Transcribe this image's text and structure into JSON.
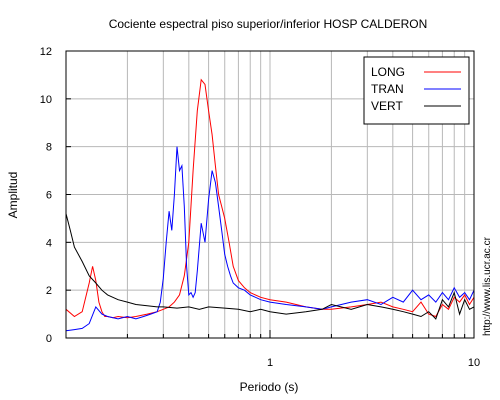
{
  "chart_data": {
    "type": "line",
    "title": "Cociente espectral piso superior/inferior  HOSP CALDERON",
    "xlabel": "Periodo (s)",
    "ylabel": "Amplitud",
    "xscale": "log",
    "xlim": [
      0.1,
      10
    ],
    "ylim": [
      0,
      12
    ],
    "yticks": [
      0,
      2,
      4,
      6,
      8,
      10,
      12
    ],
    "xtick_labels": [
      "1",
      "10"
    ],
    "grid": true,
    "legend_position": "top-right",
    "source_note": "http://www.lis.ucr.ac.cr",
    "series": [
      {
        "name": "LONG",
        "color": "#ff0000",
        "x": [
          0.1,
          0.11,
          0.12,
          0.13,
          0.135,
          0.14,
          0.145,
          0.15,
          0.155,
          0.16,
          0.17,
          0.18,
          0.2,
          0.22,
          0.25,
          0.28,
          0.3,
          0.32,
          0.34,
          0.36,
          0.38,
          0.4,
          0.42,
          0.44,
          0.46,
          0.48,
          0.5,
          0.52,
          0.54,
          0.56,
          0.58,
          0.6,
          0.63,
          0.66,
          0.7,
          0.75,
          0.8,
          0.9,
          1.0,
          1.2,
          1.5,
          1.8,
          2.0,
          2.5,
          3.0,
          3.5,
          4.0,
          4.5,
          5.0,
          5.5,
          6.0,
          6.5,
          7.0,
          7.5,
          8.0,
          8.5,
          9.0,
          9.5,
          10.0
        ],
        "y": [
          1.2,
          0.9,
          1.1,
          2.3,
          3.0,
          2.4,
          1.5,
          1.1,
          0.9,
          0.9,
          0.85,
          0.9,
          0.85,
          0.9,
          1.0,
          1.1,
          1.2,
          1.3,
          1.5,
          1.8,
          2.6,
          4.0,
          7.0,
          9.5,
          10.8,
          10.6,
          9.5,
          8.5,
          7.2,
          6.0,
          5.5,
          5.0,
          4.0,
          3.0,
          2.4,
          2.1,
          1.9,
          1.7,
          1.6,
          1.5,
          1.3,
          1.2,
          1.2,
          1.3,
          1.4,
          1.5,
          1.3,
          1.2,
          1.1,
          1.5,
          1.0,
          0.9,
          1.4,
          1.2,
          1.7,
          1.5,
          1.8,
          1.4,
          1.7
        ]
      },
      {
        "name": "TRAN",
        "color": "#0000ff",
        "x": [
          0.1,
          0.11,
          0.12,
          0.13,
          0.14,
          0.15,
          0.16,
          0.18,
          0.2,
          0.22,
          0.24,
          0.26,
          0.28,
          0.29,
          0.3,
          0.31,
          0.32,
          0.33,
          0.34,
          0.35,
          0.36,
          0.37,
          0.38,
          0.39,
          0.4,
          0.41,
          0.42,
          0.43,
          0.44,
          0.46,
          0.48,
          0.5,
          0.52,
          0.54,
          0.56,
          0.58,
          0.6,
          0.62,
          0.64,
          0.66,
          0.7,
          0.75,
          0.8,
          0.9,
          1.0,
          1.2,
          1.5,
          1.8,
          2.0,
          2.5,
          3.0,
          3.5,
          4.0,
          4.5,
          5.0,
          5.5,
          6.0,
          6.5,
          7.0,
          7.5,
          8.0,
          8.5,
          9.0,
          9.5,
          10.0
        ],
        "y": [
          0.3,
          0.35,
          0.4,
          0.6,
          1.3,
          1.0,
          0.9,
          0.8,
          0.9,
          0.8,
          0.9,
          1.0,
          1.1,
          1.5,
          2.5,
          4.0,
          5.3,
          4.5,
          6.0,
          8.0,
          7.0,
          7.2,
          5.5,
          3.0,
          1.8,
          1.9,
          1.7,
          1.9,
          2.8,
          4.8,
          4.0,
          5.8,
          7.0,
          6.5,
          5.5,
          4.5,
          3.5,
          3.0,
          2.6,
          2.3,
          2.1,
          2.0,
          1.8,
          1.6,
          1.5,
          1.4,
          1.3,
          1.2,
          1.3,
          1.5,
          1.6,
          1.4,
          1.7,
          1.5,
          2.0,
          1.6,
          1.8,
          1.5,
          1.9,
          1.6,
          2.1,
          1.7,
          1.9,
          1.6,
          2.0
        ]
      },
      {
        "name": "VERT",
        "color": "#000000",
        "x": [
          0.1,
          0.105,
          0.11,
          0.12,
          0.13,
          0.14,
          0.15,
          0.16,
          0.18,
          0.2,
          0.22,
          0.25,
          0.28,
          0.3,
          0.35,
          0.4,
          0.45,
          0.5,
          0.6,
          0.7,
          0.8,
          0.9,
          1.0,
          1.2,
          1.5,
          1.8,
          2.0,
          2.5,
          3.0,
          3.5,
          4.0,
          4.5,
          5.0,
          5.5,
          6.0,
          6.5,
          7.0,
          7.5,
          8.0,
          8.5,
          9.0,
          9.5,
          10.0
        ],
        "y": [
          5.2,
          4.5,
          3.8,
          3.2,
          2.6,
          2.3,
          2.0,
          1.8,
          1.6,
          1.5,
          1.4,
          1.35,
          1.3,
          1.3,
          1.25,
          1.3,
          1.2,
          1.3,
          1.25,
          1.2,
          1.1,
          1.2,
          1.1,
          1.0,
          1.1,
          1.2,
          1.4,
          1.2,
          1.4,
          1.3,
          1.2,
          1.1,
          1.0,
          0.9,
          1.1,
          0.8,
          1.6,
          1.3,
          1.9,
          1.0,
          1.6,
          1.2,
          1.3
        ]
      }
    ]
  }
}
